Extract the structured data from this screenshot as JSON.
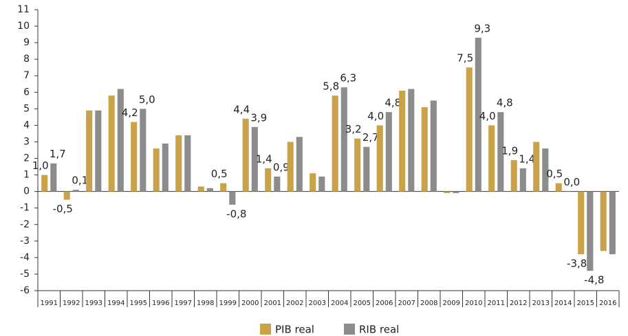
{
  "chart_data": {
    "type": "bar",
    "categories": [
      "1991",
      "1992",
      "1993",
      "1994",
      "1995",
      "1996",
      "1997",
      "1998",
      "1999",
      "2000",
      "2001",
      "2002",
      "2003",
      "2004",
      "2005",
      "2006",
      "2007",
      "2008",
      "2009",
      "2010",
      "2011",
      "2012",
      "2013",
      "2014",
      "2015",
      "2016"
    ],
    "series": [
      {
        "name": "PIB real",
        "color": "#c9a24a",
        "values": [
          1.0,
          -0.5,
          4.9,
          5.8,
          4.2,
          2.6,
          3.4,
          0.3,
          0.5,
          4.4,
          1.4,
          3.0,
          1.1,
          5.8,
          3.2,
          4.0,
          6.1,
          5.1,
          -0.1,
          7.5,
          4.0,
          1.9,
          3.0,
          0.5,
          -3.8,
          -3.6
        ],
        "value_labels": [
          "1,0",
          "-0,5",
          null,
          null,
          "4,2",
          null,
          null,
          null,
          "0,5",
          "4,4",
          "1,4",
          null,
          null,
          "5,8",
          "3,2",
          "4,0",
          null,
          null,
          null,
          "7,5",
          "4,0",
          "1,9",
          null,
          "0,5",
          "-3,8",
          null
        ]
      },
      {
        "name": "RIB real",
        "color": "#8c8c8c",
        "values": [
          1.7,
          0.1,
          4.9,
          6.2,
          5.0,
          2.9,
          3.4,
          0.2,
          -0.8,
          3.9,
          0.9,
          3.3,
          0.9,
          6.3,
          2.7,
          4.8,
          6.2,
          5.5,
          -0.1,
          9.3,
          4.8,
          1.4,
          2.6,
          0.0,
          -4.8,
          -3.8
        ],
        "value_labels": [
          "1,7",
          "0,1",
          null,
          null,
          "5,0",
          null,
          null,
          null,
          "-0,8",
          "3,9",
          "0,9",
          null,
          null,
          "6,3",
          "2,7",
          "4,8",
          null,
          null,
          null,
          "9,3",
          "4,8",
          "1,4",
          null,
          "0,0",
          "-4,8",
          null
        ]
      }
    ],
    "ylim": [
      -6,
      11
    ],
    "yticks": [
      -6,
      -5,
      -4,
      -3,
      -2,
      -1,
      0,
      1,
      2,
      3,
      4,
      5,
      6,
      7,
      8,
      9,
      10,
      11
    ],
    "legend": "bottom"
  }
}
